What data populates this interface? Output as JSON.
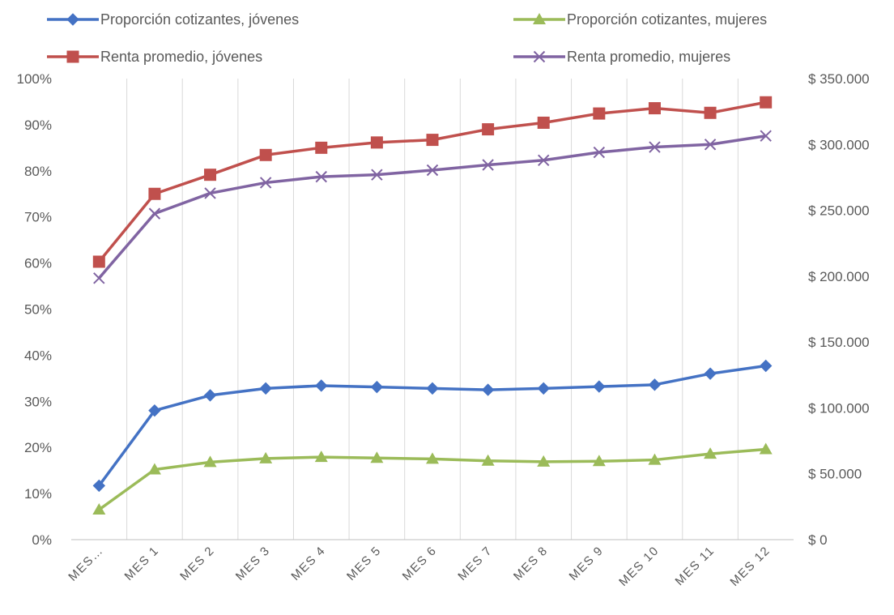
{
  "chart_data": {
    "type": "line",
    "title": "",
    "categories": [
      "MES…",
      "MES 1",
      "MES 2",
      "MES 3",
      "MES 4",
      "MES 5",
      "MES 6",
      "MES 7",
      "MES 8",
      "MES 9",
      "MES 10",
      "MES 11",
      "MES 12"
    ],
    "y_left": {
      "ylim": [
        0,
        1
      ],
      "ticks": [
        0,
        0.1,
        0.2,
        0.3,
        0.4,
        0.5,
        0.6,
        0.7,
        0.8,
        0.9,
        1.0
      ],
      "tick_labels": [
        "0%",
        "10%",
        "20%",
        "30%",
        "40%",
        "50%",
        "60%",
        "70%",
        "80%",
        "90%",
        "100%"
      ]
    },
    "y_right": {
      "ylim": [
        0,
        350000
      ],
      "ticks": [
        0,
        50000,
        100000,
        150000,
        200000,
        250000,
        300000,
        350000
      ],
      "tick_labels": [
        "$ 0",
        "$ 50.000",
        "$ 100.000",
        "$ 150.000",
        "$ 200.000",
        "$ 250.000",
        "$ 300.000",
        "$ 350.000"
      ]
    },
    "grid": "vertical",
    "legend_position": "top",
    "series": [
      {
        "name": "Proporción cotizantes, jóvenes",
        "axis": "left",
        "color": "#4472C4",
        "marker": "diamond",
        "values": [
          0.117,
          0.28,
          0.313,
          0.328,
          0.334,
          0.331,
          0.328,
          0.325,
          0.328,
          0.332,
          0.336,
          0.36,
          0.377
        ]
      },
      {
        "name": "Proporción cotizantes, mujeres",
        "axis": "left",
        "color": "#9BBB59",
        "marker": "triangle",
        "values": [
          0.065,
          0.152,
          0.168,
          0.176,
          0.179,
          0.177,
          0.175,
          0.171,
          0.169,
          0.17,
          0.173,
          0.186,
          0.196
        ]
      },
      {
        "name": "Renta promedio, jóvenes",
        "axis": "right",
        "color": "#C0504D",
        "marker": "square",
        "values": [
          211000,
          262500,
          277000,
          292000,
          297500,
          301500,
          303500,
          311500,
          316500,
          323500,
          327500,
          324000,
          332000
        ]
      },
      {
        "name": "Renta promedio, mujeres",
        "axis": "right",
        "color": "#8064A2",
        "marker": "x",
        "values": [
          198500,
          247500,
          263000,
          271000,
          275500,
          277000,
          280500,
          284500,
          288000,
          294000,
          298000,
          300000,
          306500
        ]
      }
    ]
  }
}
